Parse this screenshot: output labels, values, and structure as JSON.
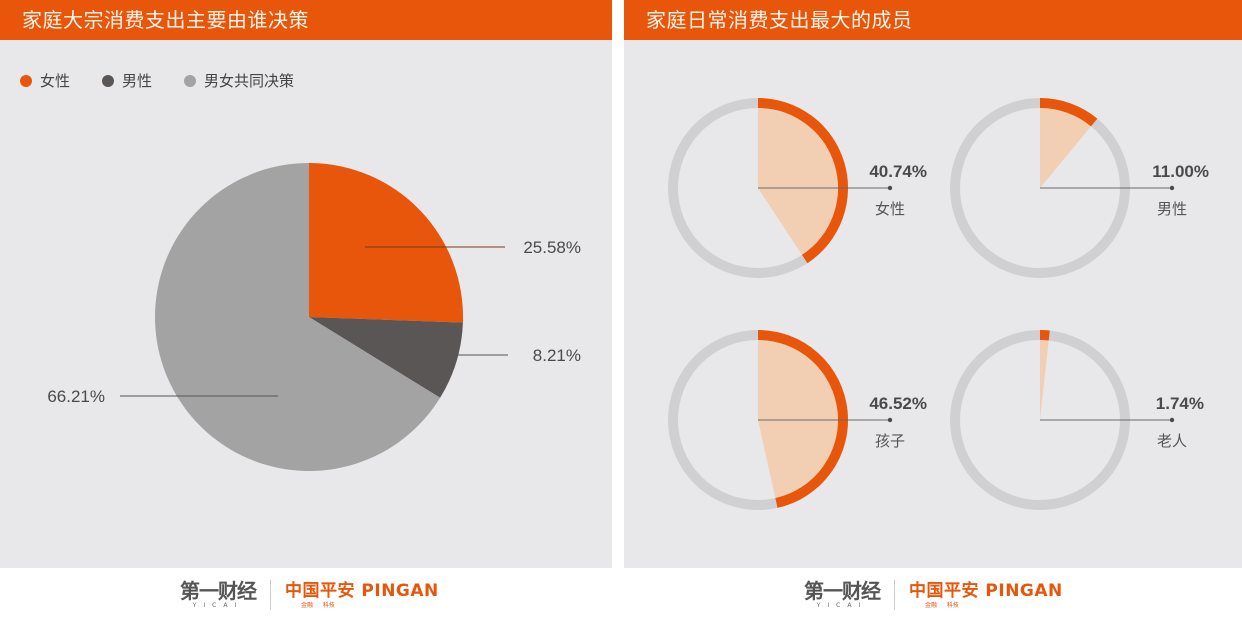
{
  "left_panel": {
    "title": "家庭大宗消费支出主要由谁决策",
    "legend": [
      {
        "label": "女性",
        "color": "#e8560b"
      },
      {
        "label": "男性",
        "color": "#5a5656"
      },
      {
        "label": "男女共同决策",
        "color": "#a3a3a3"
      }
    ],
    "labels": {
      "female": "25.58%",
      "male": "8.21%",
      "joint": "66.21%"
    }
  },
  "right_panel": {
    "title": "家庭日常消费支出最大的成员",
    "items": [
      {
        "label": "女性",
        "value_text": "40.74%"
      },
      {
        "label": "男性",
        "value_text": "11.00%"
      },
      {
        "label": "孩子",
        "value_text": "46.52%"
      },
      {
        "label": "老人",
        "value_text": "1.74%"
      }
    ]
  },
  "footer": {
    "yicai_main": "第一财经",
    "yicai_sub": "YICAI",
    "pingan_main": "中国平安 PINGAN",
    "pingan_sub": "金融 科技"
  },
  "colors": {
    "accent": "#e8560b",
    "accent_light": "#f2cfb3",
    "ring_gray": "#cfcfd1",
    "dark_gray": "#5a5656",
    "mid_gray": "#a3a3a3",
    "panel_bg": "#e8e8ea"
  },
  "chart_data": [
    {
      "type": "pie",
      "title": "家庭大宗消费支出主要由谁决策",
      "categories": [
        "女性",
        "男性",
        "男女共同决策"
      ],
      "values": [
        25.58,
        8.21,
        66.21
      ],
      "unit": "%",
      "legend_position": "top-left",
      "colors": [
        "#e8560b",
        "#5a5656",
        "#a3a3a3"
      ]
    },
    {
      "type": "pie",
      "title": "家庭日常消费支出最大的成员",
      "subtype": "small-multiples-donut-progress",
      "categories": [
        "女性",
        "男性",
        "孩子",
        "老人"
      ],
      "values": [
        40.74,
        11.0,
        46.52,
        1.74
      ],
      "unit": "%"
    }
  ]
}
